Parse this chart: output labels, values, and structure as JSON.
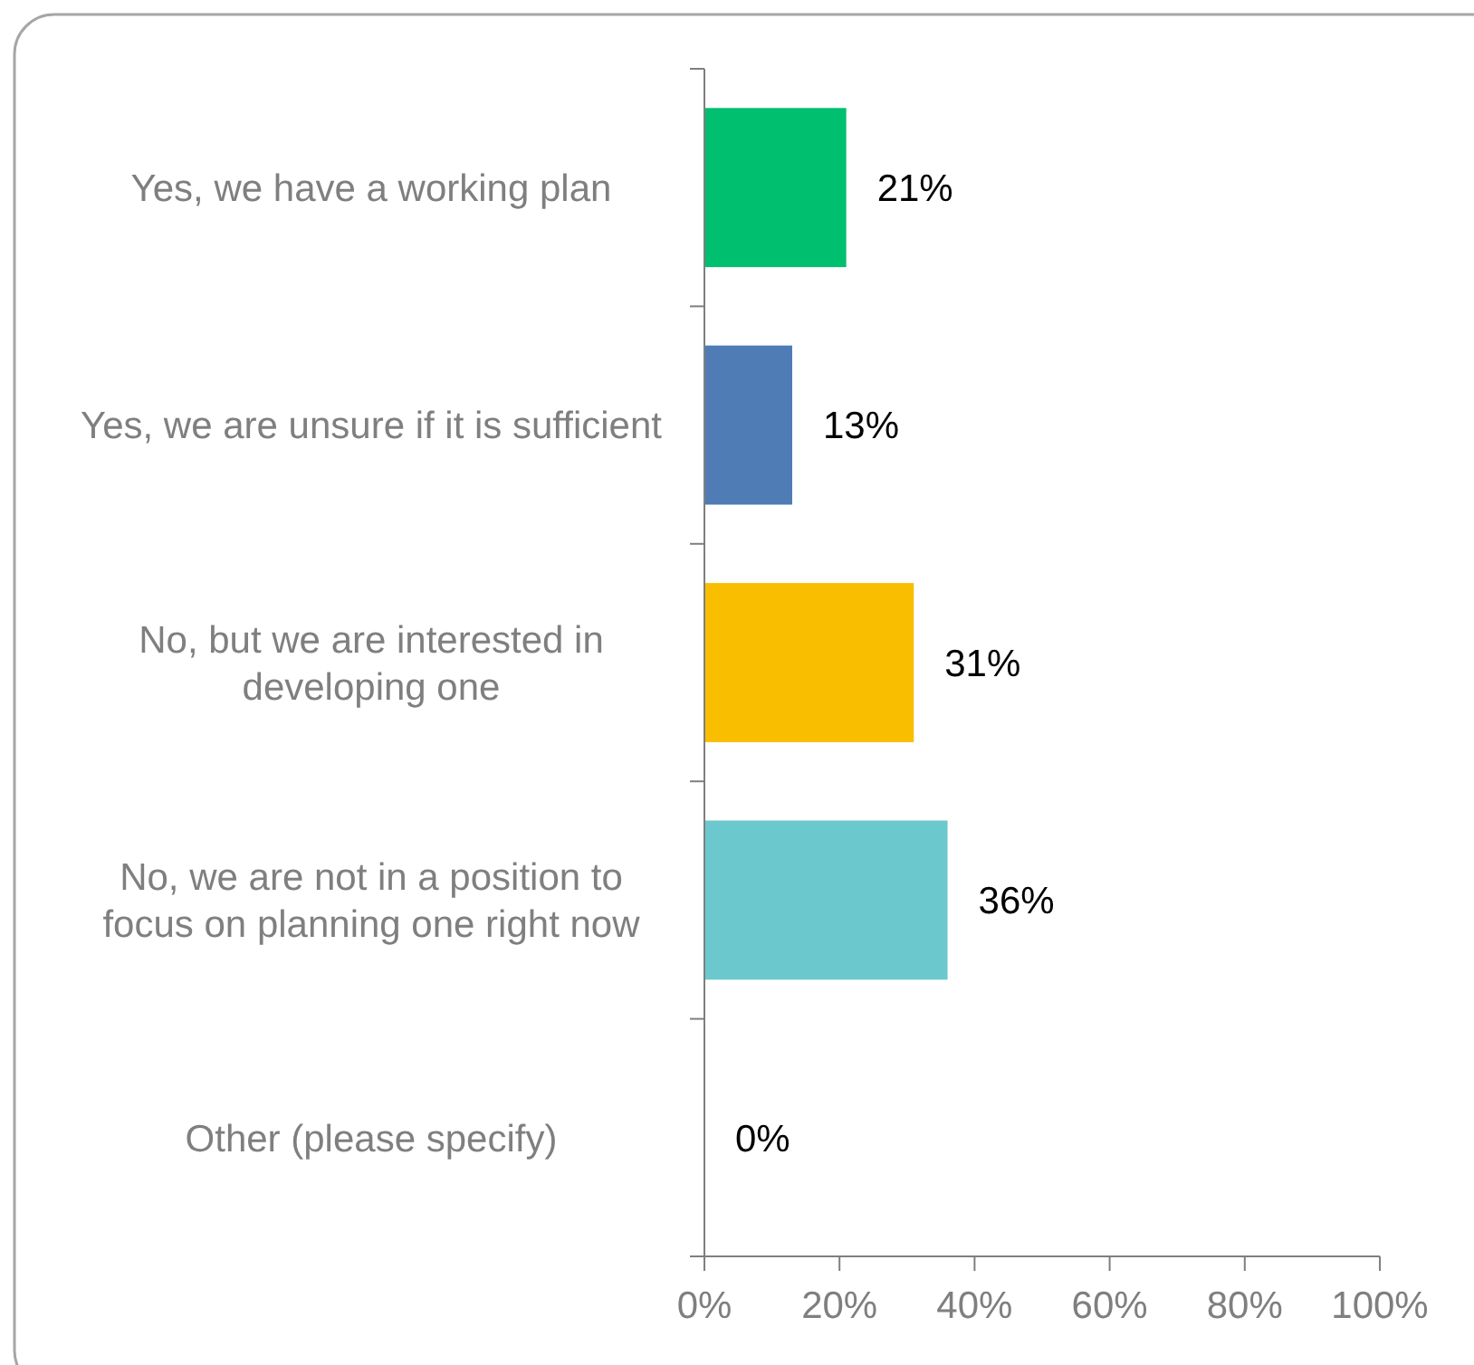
{
  "chart_data": {
    "type": "bar",
    "orientation": "horizontal",
    "categories": [
      "Yes, we have a working plan",
      "Yes, we are unsure if it is sufficient",
      "No, but we are interested in developing one",
      "No, we are not in a position to focus on planning one right now",
      "Other (please specify)"
    ],
    "values": [
      21,
      13,
      31,
      36,
      0
    ],
    "colors": [
      "#00bf6f",
      "#507cb6",
      "#f9be00",
      "#6bc8cd",
      "#a0a0a0"
    ],
    "value_labels": [
      "21%",
      "13%",
      "31%",
      "36%",
      "0%"
    ],
    "xlim": [
      0,
      100
    ],
    "xticks": [
      {
        "value": 0,
        "label": "0%"
      },
      {
        "value": 20,
        "label": "20%"
      },
      {
        "value": 40,
        "label": "40%"
      },
      {
        "value": 60,
        "label": "60%"
      },
      {
        "value": 80,
        "label": "80%"
      },
      {
        "value": 100,
        "label": "100%"
      }
    ],
    "grid": false
  }
}
